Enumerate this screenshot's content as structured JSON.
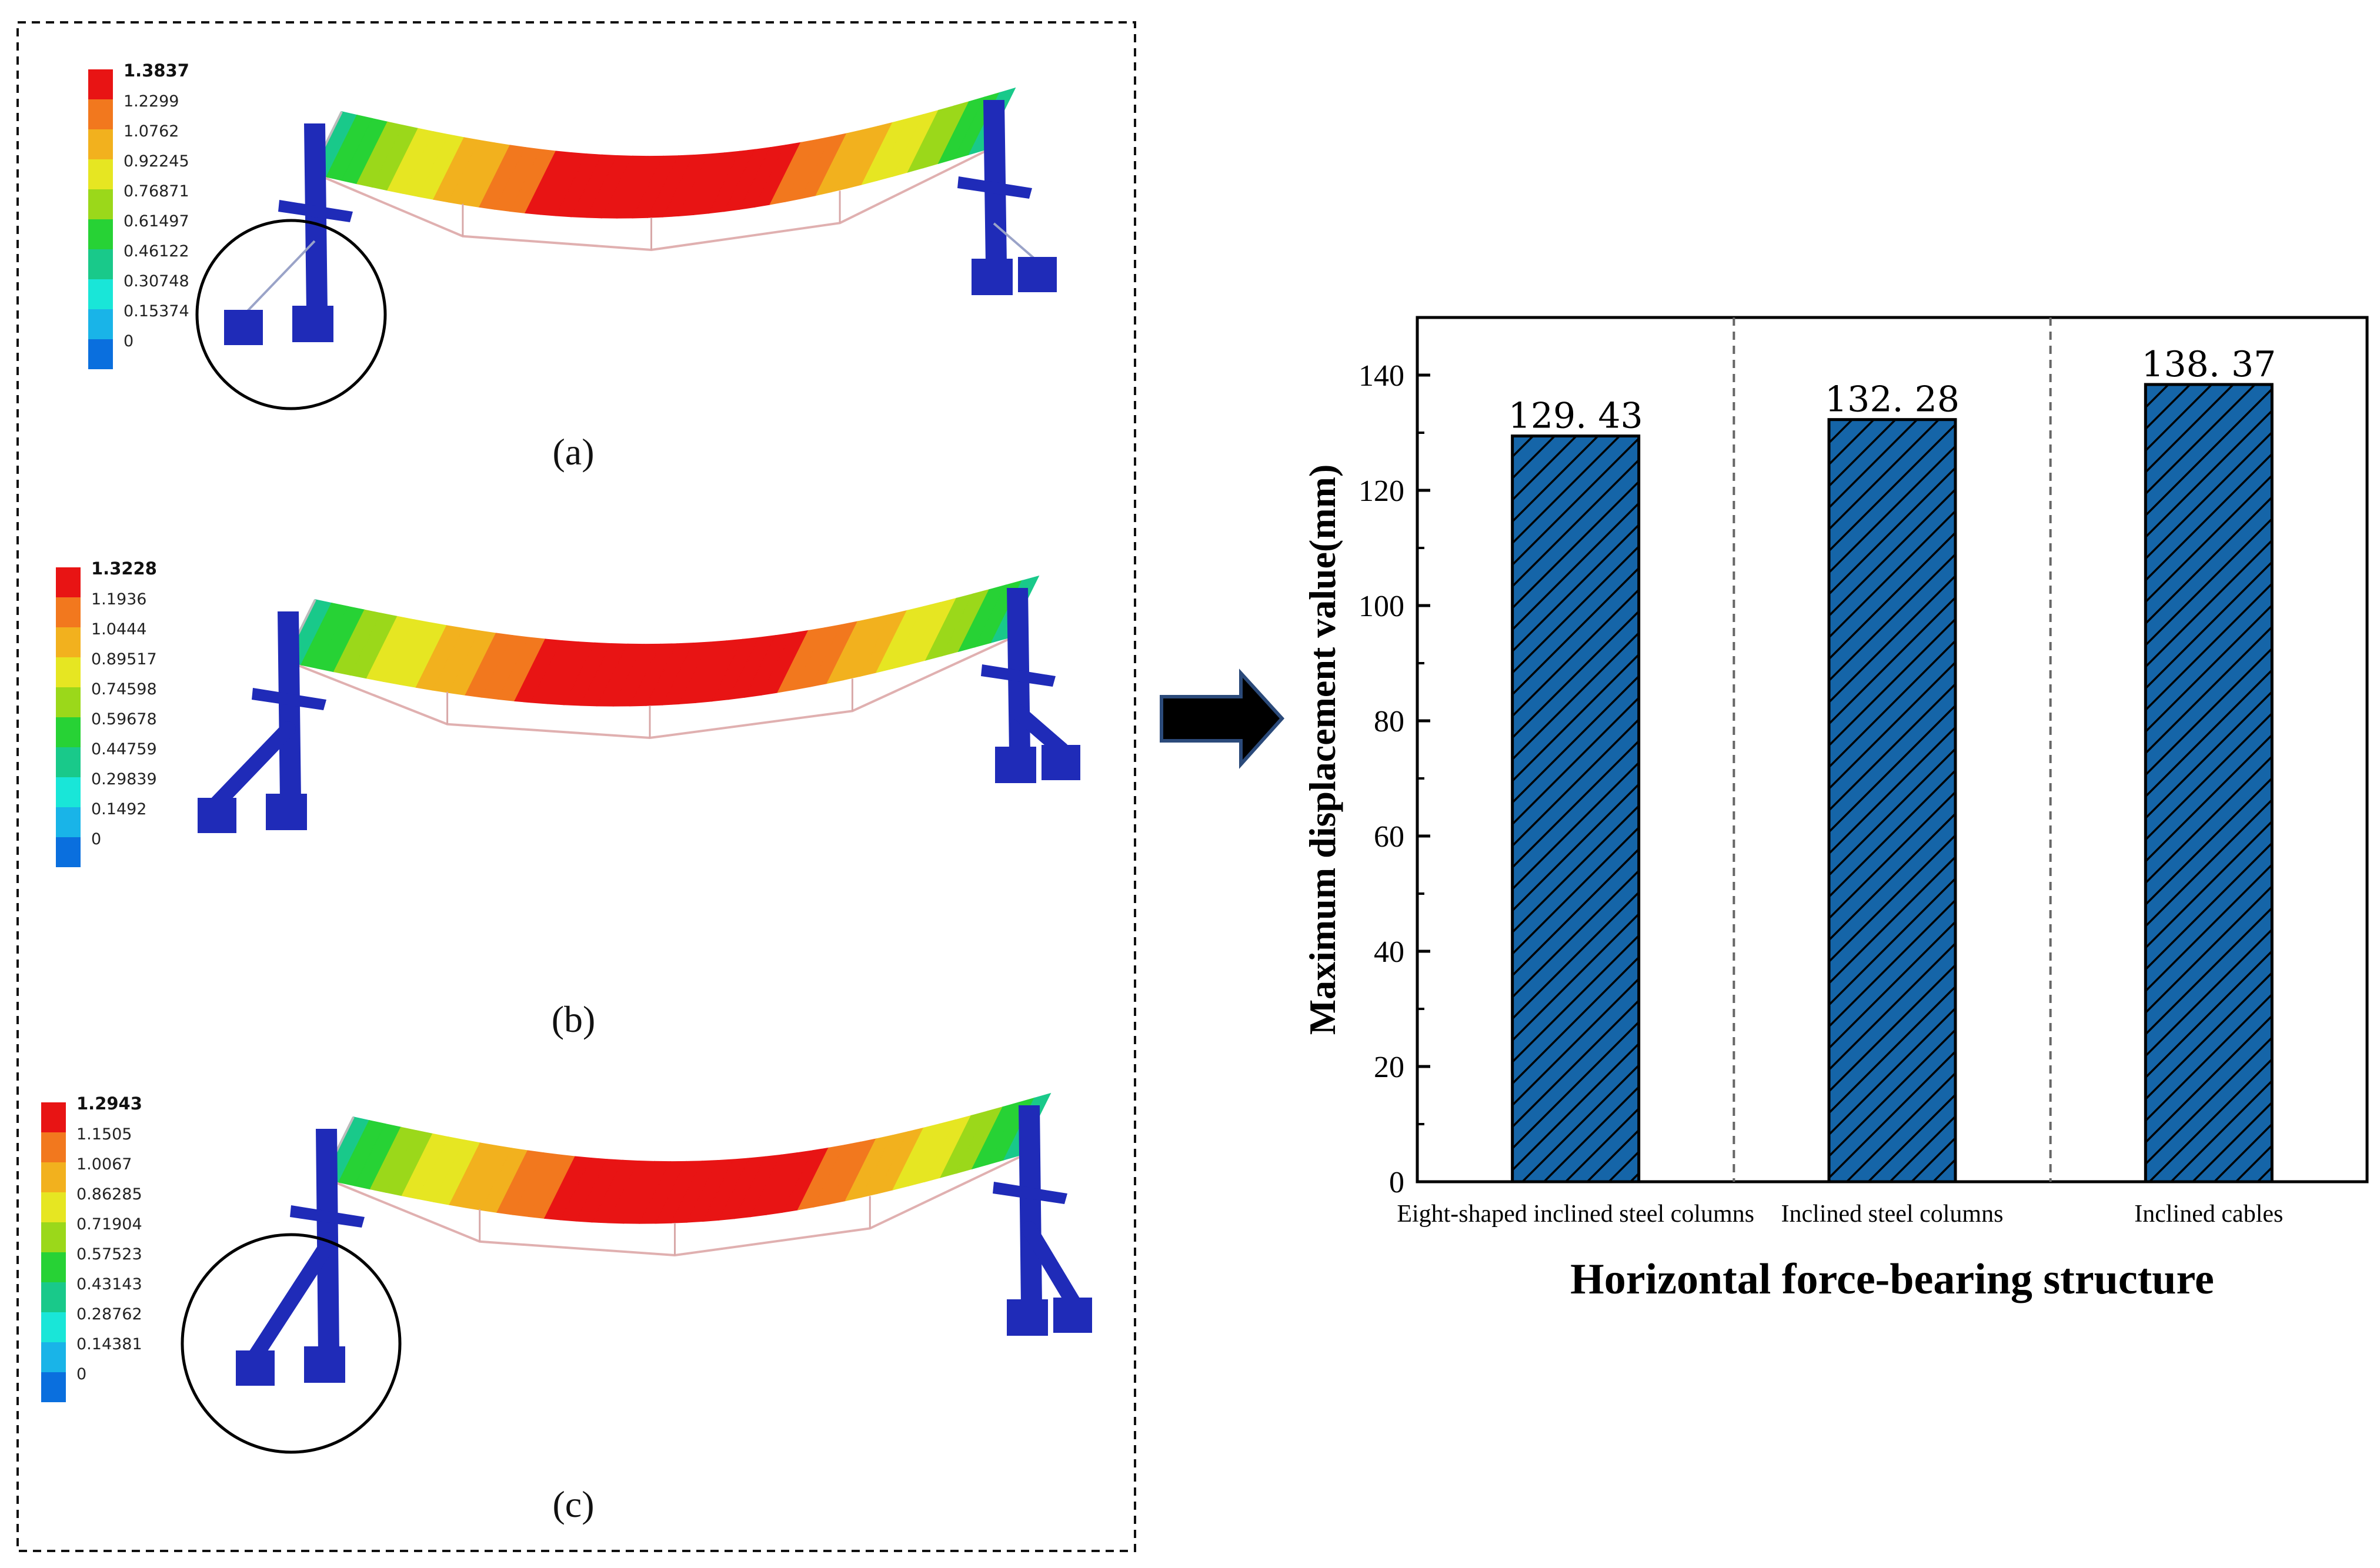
{
  "colors": {
    "bar_fill": "#1565a8",
    "contour": [
      "#0000ff",
      "#0a6fde",
      "#19b4e8",
      "#19e6d8",
      "#19c98a",
      "#27d235",
      "#9bd81a",
      "#e6e622",
      "#f2b11e",
      "#f2781e",
      "#e81414"
    ],
    "structure_blue": "#1f2bb8"
  },
  "fem_panels": [
    {
      "label": "(a)",
      "legend_values": [
        "1.3837",
        "1.2299",
        "1.0762",
        "0.92245",
        "0.76871",
        "0.61497",
        "0.46122",
        "0.30748",
        "0.15374",
        "0"
      ]
    },
    {
      "label": "(b)",
      "legend_values": [
        "1.3228",
        "1.1936",
        "1.0444",
        "0.89517",
        "0.74598",
        "0.59678",
        "0.44759",
        "0.29839",
        "0.1492",
        "0"
      ]
    },
    {
      "label": "(c)",
      "legend_values": [
        "1.2943",
        "1.1505",
        "1.0067",
        "0.86285",
        "0.71904",
        "0.57523",
        "0.43143",
        "0.28762",
        "0.14381",
        "0"
      ]
    }
  ],
  "arrow_icon": "right-arrow-icon",
  "chart_data": {
    "type": "bar",
    "categories": [
      "Eight-shaped inclined steel columns",
      "Inclined steel columns",
      "Inclined cables"
    ],
    "values": [
      129.43,
      132.28,
      138.37
    ],
    "value_labels": [
      "129. 43",
      "132. 28",
      "138. 37"
    ],
    "xlabel": "Horizontal force-bearing structure",
    "ylabel": "Maximum displacement value(mm)",
    "ylim": [
      0,
      150
    ],
    "yticks": [
      0,
      20,
      40,
      60,
      80,
      100,
      120,
      140
    ],
    "bar_pattern": "diagonal-hatch",
    "category_separators": "dashed"
  }
}
